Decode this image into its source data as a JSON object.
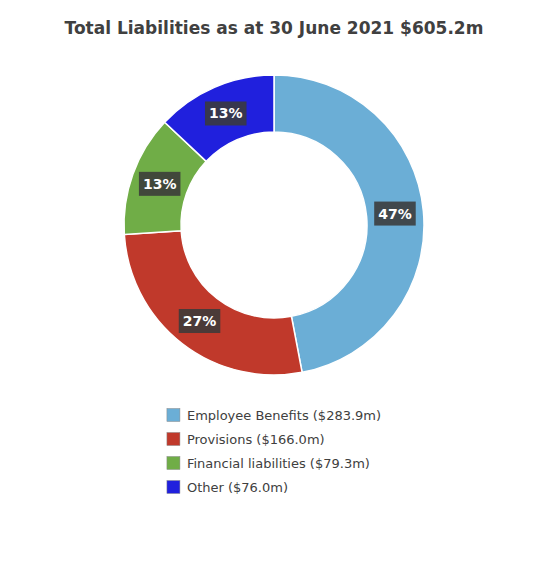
{
  "chart_data": {
    "type": "donut",
    "title": "Total Liabilities as at 30 June 2021 $605.2m",
    "categories": [
      "Employee Benefits ($283.9m)",
      "Provisions ($166.0m)",
      "Financial liabilities ($79.3m)",
      "Other ($76.0m)"
    ],
    "values": [
      47,
      27,
      13,
      13
    ],
    "value_labels": [
      "47%",
      "27%",
      "13%",
      "13%"
    ],
    "colors": [
      "#6baed6",
      "#c0392b",
      "#70ad47",
      "#2020dd"
    ],
    "data_labels": true,
    "legend": "bottom"
  }
}
